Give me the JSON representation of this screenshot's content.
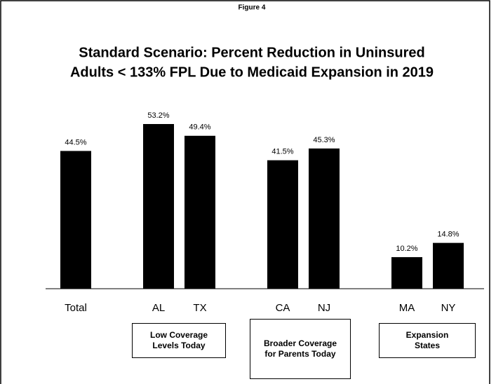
{
  "chart_data": {
    "type": "bar",
    "figure_label": "Figure 4",
    "title": [
      "Standard Scenario:  Percent Reduction in Uninsured",
      "Adults < 133% FPL Due to Medicaid Expansion in 2019"
    ],
    "categories": [
      "Total",
      "AL",
      "TX",
      "CA",
      "NJ",
      "MA",
      "NY"
    ],
    "values": [
      44.5,
      53.2,
      49.4,
      41.5,
      45.3,
      10.2,
      14.8
    ],
    "value_labels": [
      "44.5%",
      "53.2%",
      "49.4%",
      "41.5%",
      "45.3%",
      "10.2%",
      "14.8%"
    ],
    "groups": [
      "Low Coverage Levels Today",
      "Broader Coverage for Parents Today",
      "Expansion States"
    ],
    "color": "#000000"
  }
}
